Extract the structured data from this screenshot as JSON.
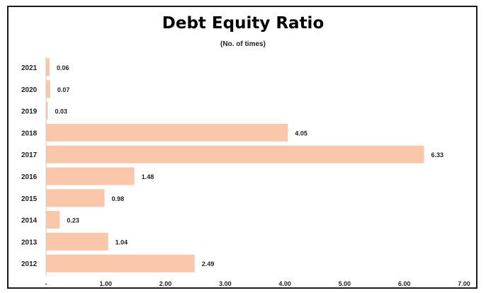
{
  "chart_data": {
    "type": "bar",
    "orientation": "horizontal",
    "title": "Debt Equity Ratio",
    "subtitle": "(No. of times)",
    "categories": [
      "2021",
      "2020",
      "2019",
      "2018",
      "2017",
      "2016",
      "2015",
      "2014",
      "2013",
      "2012"
    ],
    "values": [
      0.06,
      0.07,
      0.03,
      4.05,
      6.33,
      1.48,
      0.98,
      0.23,
      1.04,
      2.49
    ],
    "value_labels": [
      "0.06",
      "0.07",
      "0.03",
      "4.05",
      "6.33",
      "1.48",
      "0.98",
      "0.23",
      "1.04",
      "2.49"
    ],
    "xlim": [
      0,
      7
    ],
    "x_ticks": [
      0,
      1,
      2,
      3,
      4,
      5,
      6,
      7
    ],
    "x_tick_labels": [
      "-",
      "1.00",
      "2.00",
      "3.00",
      "4.00",
      "5.00",
      "6.00",
      "7.00"
    ],
    "grid": false,
    "legend": "none",
    "colors": {
      "bar": "#fbc7ab",
      "gridline": "#c8c8c8"
    }
  }
}
